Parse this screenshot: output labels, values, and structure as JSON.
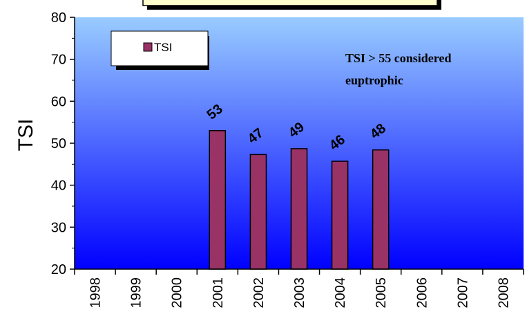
{
  "chart_data": {
    "type": "bar",
    "title": "",
    "xlabel": "",
    "ylabel": "TSI",
    "categories": [
      "1998",
      "1999",
      "2000",
      "2001",
      "2002",
      "2003",
      "2004",
      "2005",
      "2006",
      "2007",
      "2008"
    ],
    "series": [
      {
        "name": "TSI",
        "values": [
          null,
          null,
          null,
          53,
          47.3,
          48.7,
          45.7,
          48.4,
          null,
          null,
          null
        ]
      }
    ],
    "data_labels": [
      "",
      "",
      "",
      "53",
      "47",
      "49",
      "46",
      "48",
      "",
      "",
      ""
    ],
    "ylim": [
      20,
      80
    ],
    "yticks": [
      20,
      30,
      40,
      50,
      60,
      70,
      80
    ],
    "legend_position": "top-left",
    "grid": false,
    "annotation": [
      "TSI > 55 considered",
      "euptrophic"
    ],
    "colors": {
      "bar": "#993366",
      "plot_bg_top": "#99ccff",
      "plot_bg_bottom": "#0000ff",
      "title_box": "#ffffcc"
    }
  }
}
